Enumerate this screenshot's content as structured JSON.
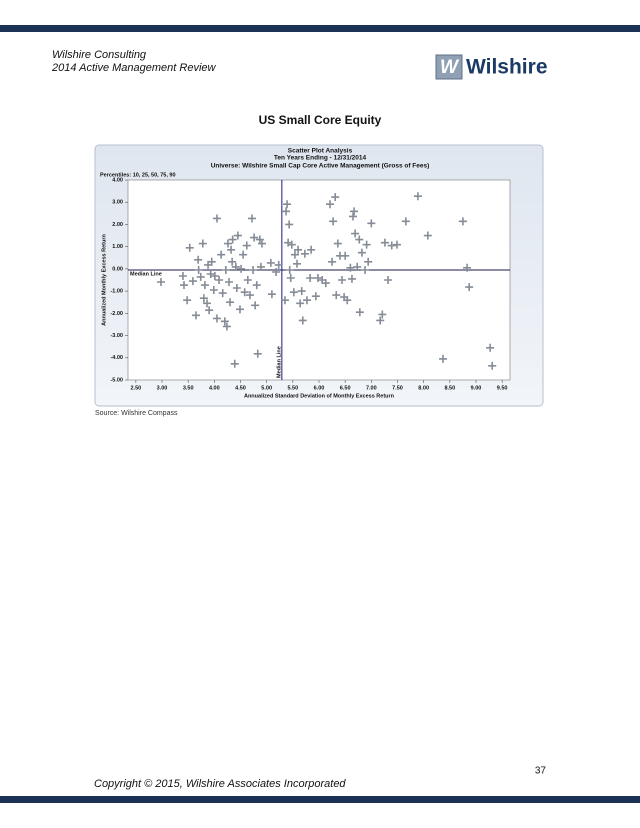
{
  "header": {
    "line1": "Wilshire Consulting",
    "line2": "2014 Active Management Review"
  },
  "logo": {
    "mark": "W",
    "text": "Wilshire"
  },
  "title": "US Small Core Equity",
  "chart_data": {
    "type": "scatter",
    "title": "Scatter Plot Analysis",
    "subtitle": "Ten Years Ending - 12/31/2014",
    "universe": "Universe: Wilshire Small Cap Core Active Management (Gross of Fees)",
    "percentiles": "Percentiles: 10, 25, 50, 75, 90",
    "x_label": "Annualized Standard Deviation of Monthly Excess Return",
    "y_label": "Annualized Monthly Excess Return",
    "median_label": "Median Line",
    "median_x": 5.29,
    "median_y": -0.05,
    "color": "#858c96",
    "xlim": [
      2.35,
      9.65
    ],
    "ylim": [
      -5,
      4
    ],
    "xticks": [
      {
        "value": 2.5,
        "label": "2.50"
      },
      {
        "value": 3,
        "label": "3.00"
      },
      {
        "value": 3.5,
        "label": "3.50"
      },
      {
        "value": 4,
        "label": "4.00"
      },
      {
        "value": 4.5,
        "label": "4.50"
      },
      {
        "value": 5,
        "label": "5.00"
      },
      {
        "value": 5.5,
        "label": "5.50"
      },
      {
        "value": 6,
        "label": "6.00"
      },
      {
        "value": 6.5,
        "label": "6.50"
      },
      {
        "value": 7,
        "label": "7.00"
      },
      {
        "value": 7.5,
        "label": "7.50"
      },
      {
        "value": 8,
        "label": "8.00"
      },
      {
        "value": 8.5,
        "label": "8.50"
      },
      {
        "value": 9,
        "label": "9.00"
      },
      {
        "value": 9.5,
        "label": "9.50"
      }
    ],
    "yticks": [
      {
        "value": 4,
        "label": "4.00"
      },
      {
        "value": 3,
        "label": "3.00"
      },
      {
        "value": 2,
        "label": "2.00"
      },
      {
        "value": 1,
        "label": "1.00"
      },
      {
        "value": 0,
        "label": "0.00"
      },
      {
        "value": -1,
        "label": "-1.00"
      },
      {
        "value": -2,
        "label": "-2.00"
      },
      {
        "value": -3,
        "label": "-3.00"
      },
      {
        "value": -4,
        "label": "-4.00"
      },
      {
        "value": -5,
        "label": "-5.00"
      }
    ],
    "x": [
      2.98,
      3.4,
      3.42,
      3.48,
      3.53,
      3.59,
      3.65,
      3.69,
      3.7,
      3.74,
      3.78,
      3.8,
      3.82,
      3.86,
      3.88,
      3.9,
      3.93,
      3.95,
      3.99,
      4.01,
      4.05,
      4.05,
      4.09,
      4.13,
      4.16,
      4.2,
      4.22,
      4.24,
      4.26,
      4.28,
      4.3,
      4.32,
      4.34,
      4.35,
      4.39,
      4.41,
      4.43,
      4.45,
      4.49,
      4.51,
      4.55,
      4.58,
      4.62,
      4.64,
      4.68,
      4.72,
      4.74,
      4.76,
      4.78,
      4.81,
      4.83,
      4.87,
      4.89,
      4.91,
      5.1,
      5.18,
      5.23,
      5.35,
      5.37,
      5.39,
      5.41,
      5.43,
      5.44,
      5.46,
      5.48,
      5.52,
      5.54,
      5.58,
      5.6,
      5.64,
      5.67,
      5.69,
      5.73,
      5.77,
      5.83,
      5.94,
      5.98,
      6.06,
      6.13,
      6.21,
      6.25,
      6.27,
      6.31,
      6.33,
      6.36,
      6.4,
      6.44,
      6.48,
      6.5,
      6.54,
      6.6,
      6.63,
      6.65,
      6.67,
      6.69,
      6.73,
      6.77,
      6.78,
      6.82,
      6.88,
      6.94,
      7.0,
      7.17,
      7.21,
      7.26,
      7.32,
      7.39,
      7.49,
      7.66,
      7.89,
      8.08,
      8.37,
      8.75,
      8.83,
      8.87,
      9.27,
      9.31,
      6.91,
      5.85,
      5.08
    ],
    "values": [
      -0.59,
      -0.32,
      -0.73,
      -1.41,
      0.95,
      -0.55,
      -2.09,
      0.41,
      -0.05,
      -0.36,
      1.14,
      -1.32,
      -0.73,
      -1.55,
      0.18,
      -1.86,
      -0.23,
      0.32,
      -0.95,
      -0.32,
      2.27,
      -2.23,
      -0.5,
      0.64,
      -1.09,
      -2.36,
      -0.05,
      -2.59,
      1.14,
      -0.59,
      -1.5,
      0.86,
      0.32,
      1.32,
      -4.27,
      0.09,
      -0.86,
      1.5,
      -1.82,
      0.0,
      0.64,
      -1.05,
      1.05,
      -0.5,
      -1.18,
      2.27,
      -0.05,
      1.41,
      -1.64,
      -0.73,
      -3.82,
      1.32,
      0.09,
      1.14,
      -1.14,
      -0.14,
      0.18,
      -1.41,
      2.59,
      2.91,
      1.18,
      2.0,
      -0.05,
      -0.41,
      1.09,
      -1.05,
      0.64,
      0.23,
      0.86,
      -1.55,
      -1.0,
      -2.32,
      0.68,
      -1.41,
      -0.41,
      -1.23,
      -0.41,
      -0.5,
      -0.64,
      2.91,
      0.32,
      2.14,
      3.23,
      -1.18,
      1.14,
      0.59,
      -0.5,
      -1.27,
      0.59,
      -1.41,
      0.05,
      -0.45,
      2.36,
      2.59,
      1.59,
      0.09,
      1.32,
      -1.95,
      0.73,
      -0.05,
      0.32,
      2.05,
      -2.32,
      -2.05,
      1.18,
      -0.5,
      1.05,
      1.09,
      2.14,
      3.27,
      1.5,
      -4.05,
      2.14,
      0.05,
      -0.82,
      -3.55,
      -4.36,
      1.09,
      0.86,
      0.27
    ]
  },
  "source": "Source: Wilshire Compass",
  "page_number": "37",
  "footer": "Copyright © 2015, Wilshire Associates Incorporated"
}
